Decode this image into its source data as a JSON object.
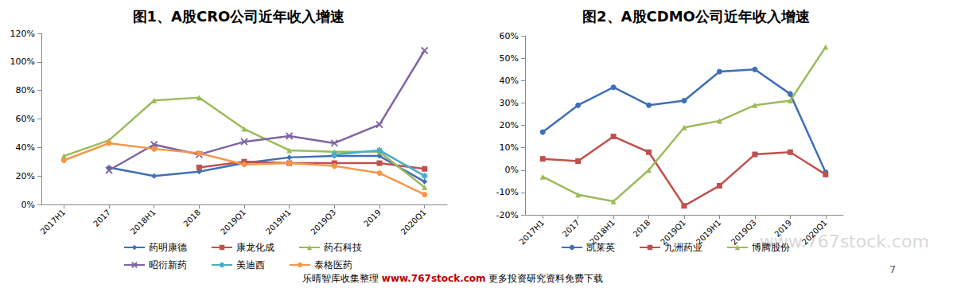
{
  "chart_data": [
    {
      "type": "line",
      "title": "图1、A股CRO公司近年收入增速",
      "categories": [
        "2017H1",
        "2017",
        "2018H1",
        "2018",
        "2019Q1",
        "2019H1",
        "2019Q3",
        "2019",
        "2020Q1"
      ],
      "series": [
        {
          "name": "药明康德",
          "color": "#3F6FB5",
          "marker": "diamond",
          "values": [
            null,
            26,
            20,
            23,
            29,
            33,
            34,
            34,
            16
          ]
        },
        {
          "name": "康龙化成",
          "color": "#C0504D",
          "marker": "square",
          "values": [
            null,
            null,
            null,
            26,
            30,
            29,
            29,
            29,
            25
          ]
        },
        {
          "name": "药石科技",
          "color": "#9BBB59",
          "marker": "triangle",
          "values": [
            34,
            45,
            73,
            75,
            53,
            38,
            37,
            37,
            12
          ]
        },
        {
          "name": "昭衍新药",
          "color": "#8064A2",
          "marker": "x",
          "values": [
            null,
            24,
            42,
            35,
            44,
            48,
            43,
            56,
            108
          ]
        },
        {
          "name": "美迪西",
          "color": "#4BACC6",
          "marker": "star",
          "values": [
            null,
            null,
            null,
            null,
            null,
            null,
            35,
            38,
            20
          ]
        },
        {
          "name": "泰格医药",
          "color": "#F79646",
          "marker": "circle",
          "values": [
            31,
            43,
            39,
            36,
            28,
            29,
            27,
            22,
            7
          ]
        }
      ],
      "ylim": [
        0,
        120
      ],
      "yticks": [
        {
          "value": 0,
          "label": "0%"
        },
        {
          "value": 20,
          "label": "20%"
        },
        {
          "value": 40,
          "label": "40%"
        },
        {
          "value": 60,
          "label": "60%"
        },
        {
          "value": 80,
          "label": "80%"
        },
        {
          "value": 100,
          "label": "100%"
        },
        {
          "value": 120,
          "label": "120%"
        }
      ],
      "grid": false,
      "legend": "bottom"
    },
    {
      "type": "line",
      "title": "图2、A股CDMO公司近年收入增速",
      "categories": [
        "2017H1",
        "2017",
        "2018H1",
        "2018",
        "2019Q1",
        "2019H1",
        "2019Q3",
        "2019",
        "2020Q1"
      ],
      "series": [
        {
          "name": "凯莱英",
          "color": "#3F6FB5",
          "marker": "circle",
          "values": [
            17,
            29,
            37,
            29,
            31,
            44,
            45,
            34,
            -1
          ]
        },
        {
          "name": "九洲药业",
          "color": "#C0504D",
          "marker": "square",
          "values": [
            5,
            4,
            15,
            8,
            -16,
            -7,
            7,
            8,
            -2
          ]
        },
        {
          "name": "博腾股份",
          "color": "#9BBB59",
          "marker": "triangle",
          "values": [
            -3,
            -11,
            -14,
            0,
            19,
            22,
            29,
            31,
            55
          ]
        }
      ],
      "ylim": [
        -20,
        60
      ],
      "yticks": [
        {
          "value": -20,
          "label": "-20%"
        },
        {
          "value": -10,
          "label": "-10%"
        },
        {
          "value": 0,
          "label": "0%"
        },
        {
          "value": 10,
          "label": "10%"
        },
        {
          "value": 20,
          "label": "20%"
        },
        {
          "value": 30,
          "label": "30%"
        },
        {
          "value": 40,
          "label": "40%"
        },
        {
          "value": 50,
          "label": "50%"
        },
        {
          "value": 60,
          "label": "60%"
        }
      ],
      "grid": false,
      "legend": "bottom"
    }
  ],
  "watermark": "www.767stock.com",
  "footer": [
    "乐晴智库收集整理",
    "www.767stock.com",
    "更多投资研究资料免费下载"
  ],
  "page": "7"
}
